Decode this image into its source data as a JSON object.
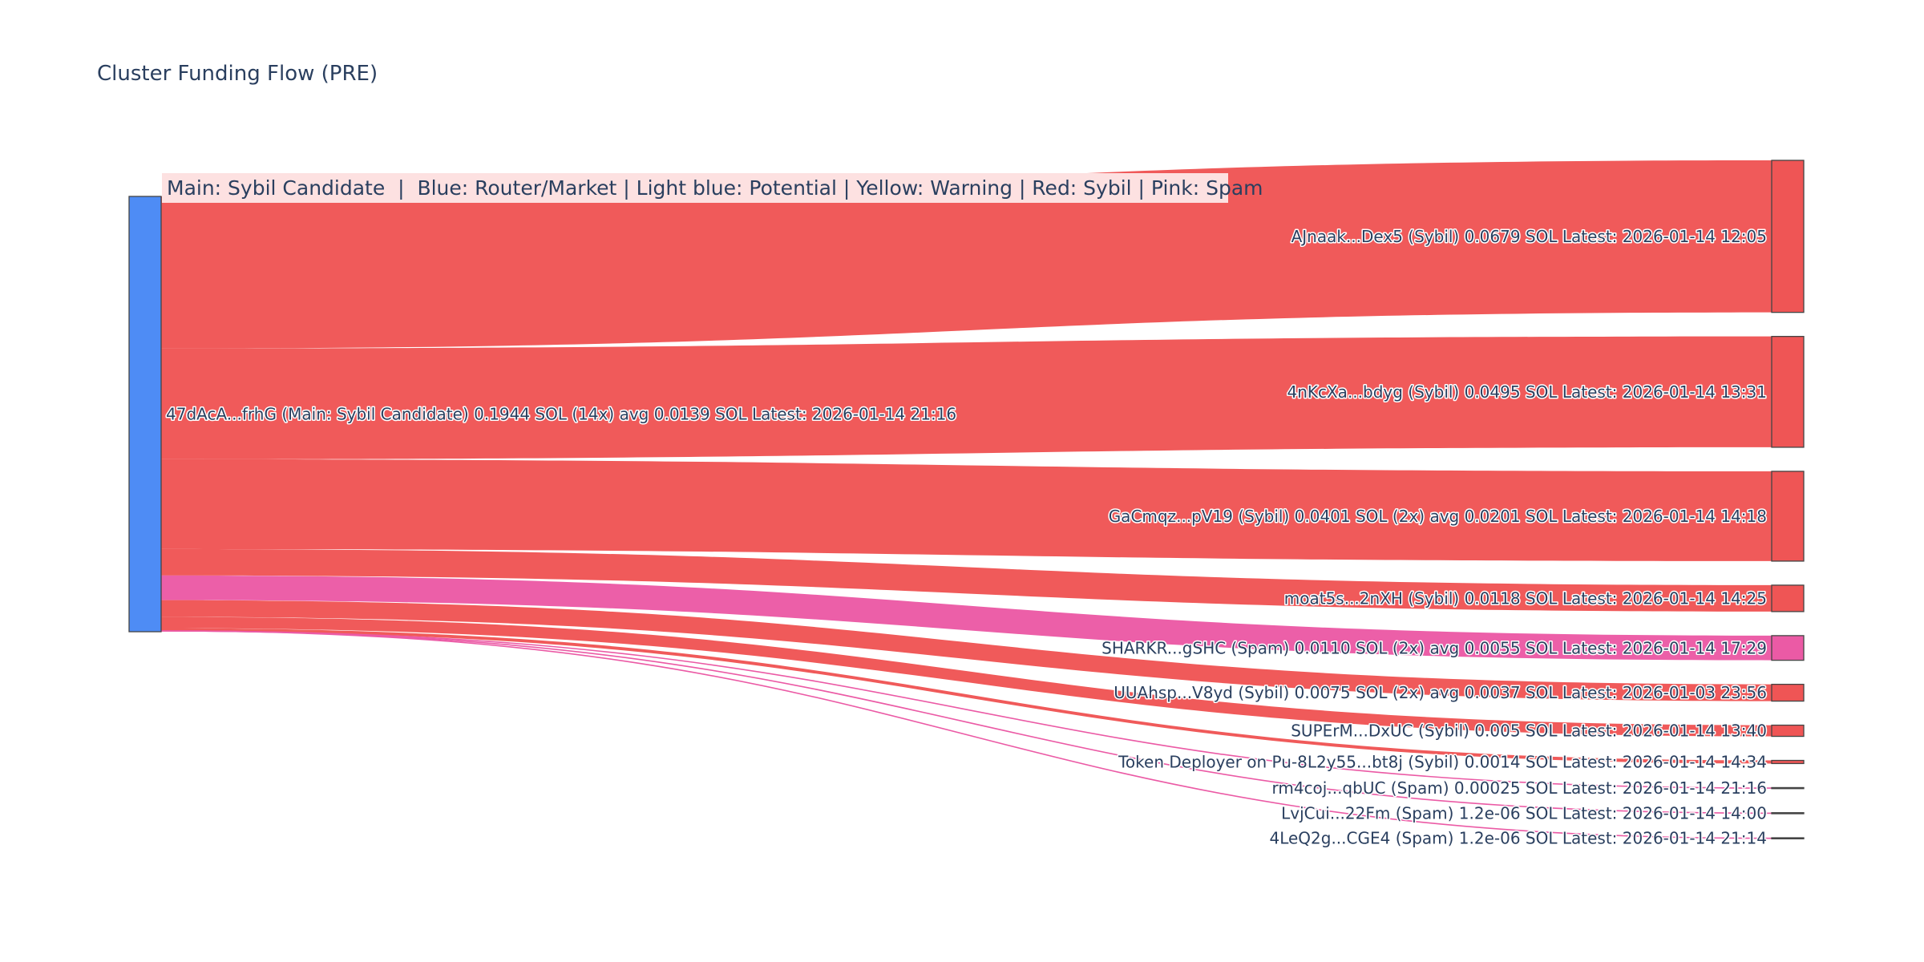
{
  "chart_data": {
    "type": "sankey",
    "title": "Cluster Funding Flow (PRE)",
    "legend_note": "Main: Sybil Candidate  |  Blue: Router/Market | Light blue: Potential | Yellow: Warning | Red: Sybil | Pink: Spam",
    "colors": {
      "main": "#4e8cf5",
      "sybil": "#ef5555",
      "spam": "#eb5aa5",
      "legend_bg": "#fde1e1"
    },
    "source": {
      "label": "47dAcA...frhG (Main: Sybil Candidate) 0.1944 SOL (14x) avg 0.0139 SOL Latest: 2026-01-14 21:16",
      "category": "main",
      "value": 0.1944
    },
    "targets": [
      {
        "label": "AJnaak...Dex5 (Sybil) 0.0679 SOL Latest: 2026-01-14 12:05",
        "category": "sybil",
        "value": 0.0679
      },
      {
        "label": "4nKcXa...bdyg (Sybil) 0.0495 SOL Latest: 2026-01-14 13:31",
        "category": "sybil",
        "value": 0.0495
      },
      {
        "label": "GaCmqz...pV19 (Sybil) 0.0401 SOL (2x) avg 0.0201 SOL Latest: 2026-01-14 14:18",
        "category": "sybil",
        "value": 0.0401
      },
      {
        "label": "moat5s...2nXH (Sybil) 0.0118 SOL Latest: 2026-01-14 14:25",
        "category": "sybil",
        "value": 0.0118
      },
      {
        "label": "SHARKR...gSHC (Spam) 0.0110 SOL (2x) avg 0.0055 SOL Latest: 2026-01-14 17:29",
        "category": "spam",
        "value": 0.011
      },
      {
        "label": "UUAhsp...V8yd (Sybil) 0.0075 SOL (2x) avg 0.0037 SOL Latest: 2026-01-03 23:56",
        "category": "sybil",
        "value": 0.0075
      },
      {
        "label": "SUPErM...DxUC (Sybil) 0.005 SOL Latest: 2026-01-14 13:40",
        "category": "sybil",
        "value": 0.005
      },
      {
        "label": "Token Deployer on Pu-8L2y55...bt8j (Sybil) 0.0014 SOL Latest: 2026-01-14 14:34",
        "category": "sybil",
        "value": 0.0014
      },
      {
        "label": "rm4coj...qbUC (Spam) 0.00025 SOL Latest: 2026-01-14 21:16",
        "category": "spam",
        "value": 0.00025
      },
      {
        "label": "LvjCui...22Fm (Spam) 1.2e-06 SOL Latest: 2026-01-14 14:00",
        "category": "spam",
        "value": 1.2e-06
      },
      {
        "label": "4LeQ2g...CGE4 (Spam) 1.2e-06 SOL Latest: 2026-01-14 21:14",
        "category": "spam",
        "value": 1.2e-06
      }
    ]
  }
}
